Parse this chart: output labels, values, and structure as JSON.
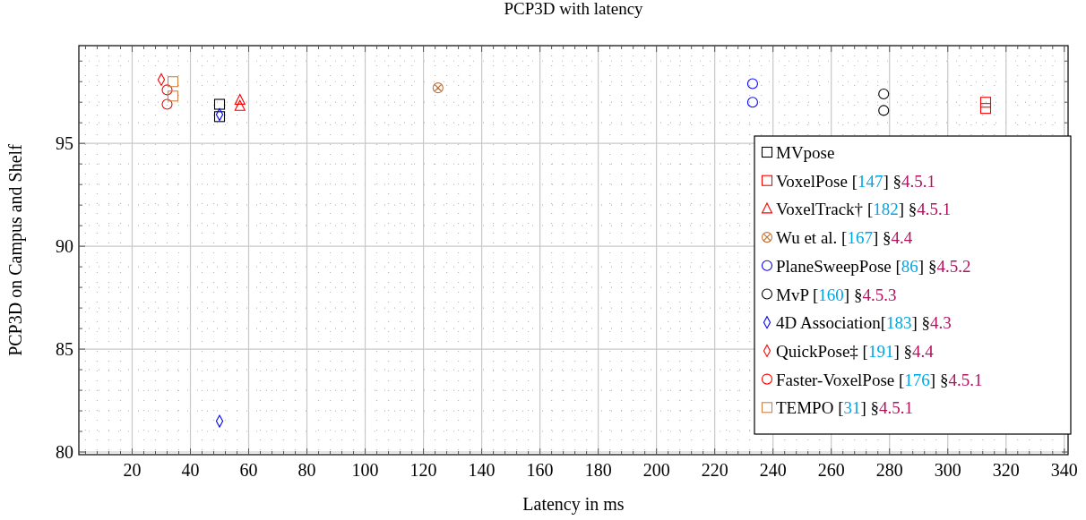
{
  "chart_data": {
    "type": "scatter",
    "title": "PCP3D with latency",
    "xlabel": "Latency in ms",
    "ylabel": "PCP3D on Campus and Shelf",
    "xlim": [
      1.7,
      341.3
    ],
    "ylim": [
      79.87,
      99.75
    ],
    "xticks": [
      {
        "value": 4,
        "label": null
      },
      {
        "value": 8,
        "label": null
      },
      {
        "value": 12,
        "label": null
      },
      {
        "value": 16,
        "label": null
      },
      20,
      {
        "value": 24,
        "label": null
      },
      {
        "value": 28,
        "label": null
      },
      {
        "value": 32,
        "label": null
      },
      {
        "value": 36,
        "label": null
      },
      40,
      {
        "value": 44,
        "label": null
      },
      {
        "value": 48,
        "label": null
      },
      {
        "value": 52,
        "label": null
      },
      {
        "value": 56,
        "label": null
      },
      60,
      {
        "value": 64,
        "label": null
      },
      {
        "value": 68,
        "label": null
      },
      {
        "value": 72,
        "label": null
      },
      {
        "value": 76,
        "label": null
      },
      80,
      {
        "value": 84,
        "label": null
      },
      {
        "value": 88,
        "label": null
      },
      {
        "value": 92,
        "label": null
      },
      {
        "value": 96,
        "label": null
      },
      100,
      {
        "value": 104,
        "label": null
      },
      {
        "value": 108,
        "label": null
      },
      {
        "value": 112,
        "label": null
      },
      {
        "value": 116,
        "label": null
      },
      120,
      {
        "value": 124,
        "label": null
      },
      {
        "value": 128,
        "label": null
      },
      {
        "value": 132,
        "label": null
      },
      {
        "value": 136,
        "label": null
      },
      140,
      {
        "value": 144,
        "label": null
      },
      {
        "value": 148,
        "label": null
      },
      {
        "value": 152,
        "label": null
      },
      {
        "value": 156,
        "label": null
      },
      160,
      {
        "value": 164,
        "label": null
      },
      {
        "value": 168,
        "label": null
      },
      {
        "value": 172,
        "label": null
      },
      {
        "value": 176,
        "label": null
      },
      180,
      {
        "value": 184,
        "label": null
      },
      {
        "value": 188,
        "label": null
      },
      {
        "value": 192,
        "label": null
      },
      {
        "value": 196,
        "label": null
      },
      200,
      {
        "value": 204,
        "label": null
      },
      {
        "value": 208,
        "label": null
      },
      {
        "value": 212,
        "label": null
      },
      {
        "value": 216,
        "label": null
      },
      220,
      {
        "value": 224,
        "label": null
      },
      {
        "value": 228,
        "label": null
      },
      {
        "value": 232,
        "label": null
      },
      {
        "value": 236,
        "label": null
      },
      240,
      {
        "value": 244,
        "label": null
      },
      {
        "value": 248,
        "label": null
      },
      {
        "value": 252,
        "label": null
      },
      {
        "value": 256,
        "label": null
      },
      260,
      {
        "value": 264,
        "label": null
      },
      {
        "value": 268,
        "label": null
      },
      {
        "value": 272,
        "label": null
      },
      {
        "value": 276,
        "label": null
      },
      280,
      {
        "value": 284,
        "label": null
      },
      {
        "value": 288,
        "label": null
      },
      {
        "value": 292,
        "label": null
      },
      {
        "value": 296,
        "label": null
      },
      300,
      {
        "value": 304,
        "label": null
      },
      {
        "value": 308,
        "label": null
      },
      {
        "value": 312,
        "label": null
      },
      {
        "value": 316,
        "label": null
      },
      320,
      {
        "value": 324,
        "label": null
      },
      {
        "value": 328,
        "label": null
      },
      {
        "value": 332,
        "label": null
      },
      {
        "value": 336,
        "label": null
      },
      340
    ],
    "yticks": [
      80,
      {
        "value": 81,
        "label": null
      },
      {
        "value": 82,
        "label": null
      },
      {
        "value": 83,
        "label": null
      },
      {
        "value": 84,
        "label": null
      },
      85,
      {
        "value": 86,
        "label": null
      },
      {
        "value": 87,
        "label": null
      },
      {
        "value": 88,
        "label": null
      },
      {
        "value": 89,
        "label": null
      },
      90,
      {
        "value": 91,
        "label": null
      },
      {
        "value": 92,
        "label": null
      },
      {
        "value": 93,
        "label": null
      },
      {
        "value": 94,
        "label": null
      },
      95,
      {
        "value": 96,
        "label": null
      },
      {
        "value": 97,
        "label": null
      },
      {
        "value": 98,
        "label": null
      },
      {
        "value": 99,
        "label": null
      }
    ],
    "grid": true,
    "legend": "bottom right",
    "series": [
      {
        "name": "MVpose",
        "color": "#000000",
        "marker": "square",
        "x": [
          50,
          50
        ],
        "values": [
          96.9,
          96.3
        ]
      },
      {
        "name": "VoxelPose [147] §4.5.1",
        "color": "#ff0000",
        "marker": "square",
        "x": [
          313,
          313
        ],
        "values": [
          97.0,
          96.7
        ]
      },
      {
        "name": "VoxelTrack† [182] §4.5.1",
        "color": "#ff0000",
        "marker": "triangle",
        "x": [
          57,
          57
        ],
        "values": [
          97.1,
          96.8
        ]
      },
      {
        "name": "Wu et al. [167] §4.4",
        "color": "#c0743a",
        "marker": "cross",
        "x": [
          125
        ],
        "values": [
          97.7
        ]
      },
      {
        "name": "PlaneSweepPose [86] §4.5.2",
        "color": "#0000ff",
        "marker": "circle",
        "x": [
          233,
          233
        ],
        "values": [
          97.9,
          97.0
        ]
      },
      {
        "name": "MvP [160] §4.5.3",
        "color": "#000000",
        "marker": "circle",
        "x": [
          278,
          278
        ],
        "values": [
          97.4,
          96.6
        ]
      },
      {
        "name": "4D Association[183] §4.3",
        "color": "#0000ff",
        "marker": "diamond",
        "x": [
          50,
          50
        ],
        "values": [
          96.4,
          81.5
        ]
      },
      {
        "name": "QuickPose‡ [191] §4.4",
        "color": "#ff0000",
        "marker": "diamond",
        "x": [
          30
        ],
        "values": [
          98.1
        ]
      },
      {
        "name": "Faster-VoxelPose [176] §4.5.1",
        "color": "#ff0000",
        "marker": "circle",
        "x": [
          32,
          32
        ],
        "values": [
          97.6,
          96.9
        ]
      },
      {
        "name": "TEMPO [31] §4.5.1",
        "color": "#d08040",
        "marker": "square",
        "x": [
          34,
          34
        ],
        "values": [
          98.0,
          97.3
        ]
      }
    ]
  }
}
